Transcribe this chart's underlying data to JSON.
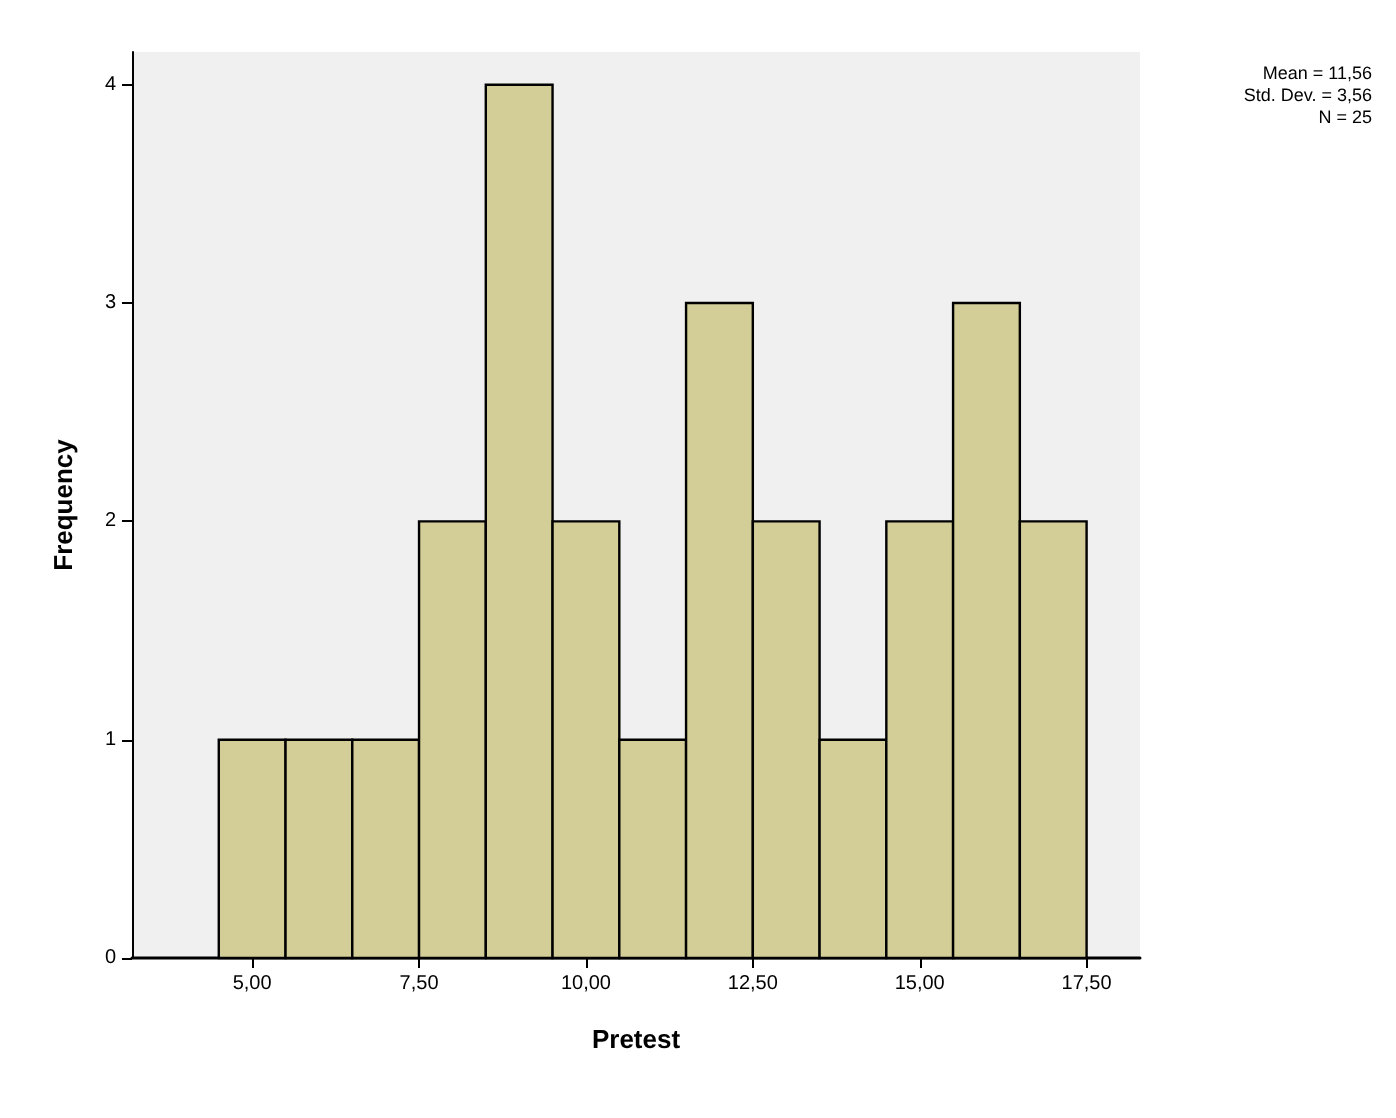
{
  "chart_data": {
    "type": "histogram",
    "xlabel": "Pretest",
    "ylabel": "Frequency",
    "bins": [
      4.5,
      5.5,
      6.5,
      7.5,
      8.5,
      9.5,
      10.5,
      11.5,
      12.5,
      13.5,
      14.5,
      15.5,
      16.5,
      17.5
    ],
    "values": [
      1,
      1,
      1,
      2,
      4,
      2,
      1,
      3,
      2,
      1,
      2,
      3,
      2
    ],
    "color": "#d3ce97",
    "xlim": [
      3.2,
      18.3
    ],
    "xticks": [
      {
        "value": 5,
        "label": "5,00"
      },
      {
        "value": 7.5,
        "label": "7,50"
      },
      {
        "value": 10,
        "label": "10,00"
      },
      {
        "value": 12.5,
        "label": "12,50"
      },
      {
        "value": 15,
        "label": "15,00"
      },
      {
        "value": 17.5,
        "label": "17,50"
      }
    ],
    "ylim": [
      0,
      4.15
    ],
    "yticks": [
      0,
      1,
      2,
      3,
      4
    ],
    "grid": false,
    "annotations": [
      "Mean = 11,56",
      "Std. Dev. = 3,56",
      "N = 25"
    ]
  }
}
